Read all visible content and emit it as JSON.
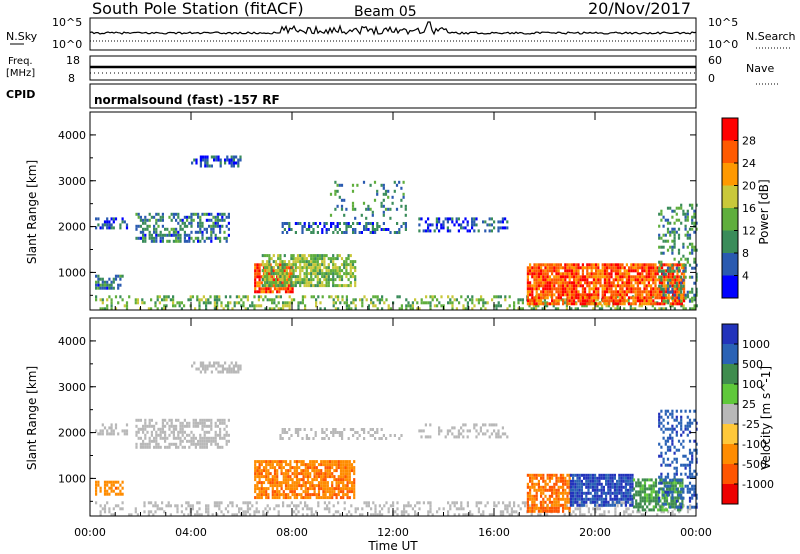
{
  "header": {
    "station": "South Pole Station (fitACF)",
    "beam": "Beam 05",
    "date": "20/Nov/2017"
  },
  "noise_panel": {
    "left_label": "N.Sky",
    "right_label": "N.Search",
    "left_ticks": [
      "10^5",
      "10^0"
    ],
    "right_ticks": [
      "10^5",
      "10^0"
    ]
  },
  "freq_panel": {
    "left_label_1": "Freq.",
    "left_label_2": "[MHz]",
    "left_ticks": [
      "18",
      "8"
    ],
    "right_label": "Nave",
    "right_ticks": [
      "60",
      "0"
    ],
    "cpid_label": "CPID"
  },
  "mode": {
    "text": "normalsound (fast) -157 RF"
  },
  "x_axis": {
    "label": "Time UT",
    "ticks": [
      "00:00",
      "04:00",
      "08:00",
      "12:00",
      "16:00",
      "20:00",
      "00:00"
    ],
    "range_hours": [
      0,
      24
    ]
  },
  "colors": {
    "power": [
      "#0000ff",
      "#2a5ab0",
      "#3a8c5a",
      "#5fae3c",
      "#c9c83a",
      "#ff9900",
      "#ff5a00",
      "#ff0000"
    ],
    "velocity": [
      "#2233bb",
      "#2a62b5",
      "#3f8c4e",
      "#5fc83a",
      "#b8b8b8",
      "#ffc83a",
      "#ff8c00",
      "#ff5500",
      "#ee0000"
    ]
  },
  "chart_data": [
    {
      "type": "heatmap",
      "title": "",
      "xlabel": "",
      "ylabel": "Slant Range [km]",
      "xlim": [
        0,
        24
      ],
      "ylim": [
        180,
        4500
      ],
      "yticks": [
        "1000",
        "2000",
        "3000",
        "4000"
      ],
      "colorbar": {
        "label": "Power [dB]",
        "ticks": [
          "4",
          "8",
          "12",
          "16",
          "20",
          "24",
          "28"
        ],
        "range": [
          0,
          32
        ]
      },
      "regions": [
        {
          "t0": 0.2,
          "t1": 24,
          "r0": 180,
          "r1": 500,
          "value": 14,
          "density": 0.35
        },
        {
          "t0": 0.2,
          "t1": 1.3,
          "r0": 650,
          "r1": 950,
          "value": 8,
          "density": 0.6
        },
        {
          "t0": 0.2,
          "t1": 1.5,
          "r0": 2000,
          "r1": 2200,
          "value": 6,
          "density": 0.4
        },
        {
          "t0": 1.8,
          "t1": 5.5,
          "r0": 1700,
          "r1": 2300,
          "value": 8,
          "density": 0.55
        },
        {
          "t0": 4.0,
          "t1": 6.0,
          "r0": 3300,
          "r1": 3550,
          "value": 6,
          "density": 0.6
        },
        {
          "t0": 6.5,
          "t1": 8.0,
          "r0": 600,
          "r1": 1200,
          "value": 27,
          "density": 0.85
        },
        {
          "t0": 6.8,
          "t1": 10.5,
          "r0": 700,
          "r1": 1400,
          "value": 15,
          "density": 0.75
        },
        {
          "t0": 7.5,
          "t1": 12.5,
          "r0": 1900,
          "r1": 2100,
          "value": 7,
          "density": 0.4
        },
        {
          "t0": 9.5,
          "t1": 12.5,
          "r0": 2200,
          "r1": 3000,
          "value": 10,
          "density": 0.15
        },
        {
          "t0": 13.0,
          "t1": 16.5,
          "r0": 1900,
          "r1": 2200,
          "value": 6,
          "density": 0.4
        },
        {
          "t0": 17.3,
          "t1": 23.5,
          "r0": 300,
          "r1": 1200,
          "value": 26,
          "density": 0.85
        },
        {
          "t0": 22.5,
          "t1": 24,
          "r0": 400,
          "r1": 2500,
          "value": 10,
          "density": 0.35
        }
      ]
    },
    {
      "type": "heatmap",
      "title": "",
      "xlabel": "Time UT",
      "ylabel": "Slant Range [km]",
      "xlim": [
        0,
        24
      ],
      "ylim": [
        180,
        4500
      ],
      "yticks": [
        "1000",
        "2000",
        "3000",
        "4000"
      ],
      "colorbar": {
        "label": "Velocity [m s^-1]",
        "ticks": [
          "1000",
          "500",
          "100",
          "25",
          "-25",
          "-100",
          "-500",
          "-1000"
        ]
      },
      "regions": [
        {
          "t0": 0.2,
          "t1": 24,
          "r0": 180,
          "r1": 500,
          "value": 0,
          "density": 0.3
        },
        {
          "t0": 0.2,
          "t1": 1.3,
          "r0": 650,
          "r1": 950,
          "value": -200,
          "density": 0.6
        },
        {
          "t0": 0.2,
          "t1": 1.5,
          "r0": 2000,
          "r1": 2200,
          "value": 0,
          "density": 0.4
        },
        {
          "t0": 1.8,
          "t1": 5.5,
          "r0": 1700,
          "r1": 2300,
          "value": 0,
          "density": 0.55
        },
        {
          "t0": 4.0,
          "t1": 6.0,
          "r0": 3300,
          "r1": 3550,
          "value": 0,
          "density": 0.6
        },
        {
          "t0": 6.5,
          "t1": 10.5,
          "r0": 600,
          "r1": 1400,
          "value": -250,
          "density": 0.8
        },
        {
          "t0": 7.5,
          "t1": 12.5,
          "r0": 1900,
          "r1": 2100,
          "value": 0,
          "density": 0.35
        },
        {
          "t0": 13.0,
          "t1": 16.5,
          "r0": 1900,
          "r1": 2200,
          "value": 0,
          "density": 0.35
        },
        {
          "t0": 17.3,
          "t1": 19.0,
          "r0": 300,
          "r1": 1100,
          "value": -300,
          "density": 0.8
        },
        {
          "t0": 19.0,
          "t1": 21.5,
          "r0": 400,
          "r1": 1100,
          "value": 800,
          "density": 0.85
        },
        {
          "t0": 21.5,
          "t1": 23.5,
          "r0": 300,
          "r1": 1000,
          "value": 80,
          "density": 0.75
        },
        {
          "t0": 22.5,
          "t1": 24,
          "r0": 400,
          "r1": 2500,
          "value": 600,
          "density": 0.35
        }
      ]
    }
  ]
}
